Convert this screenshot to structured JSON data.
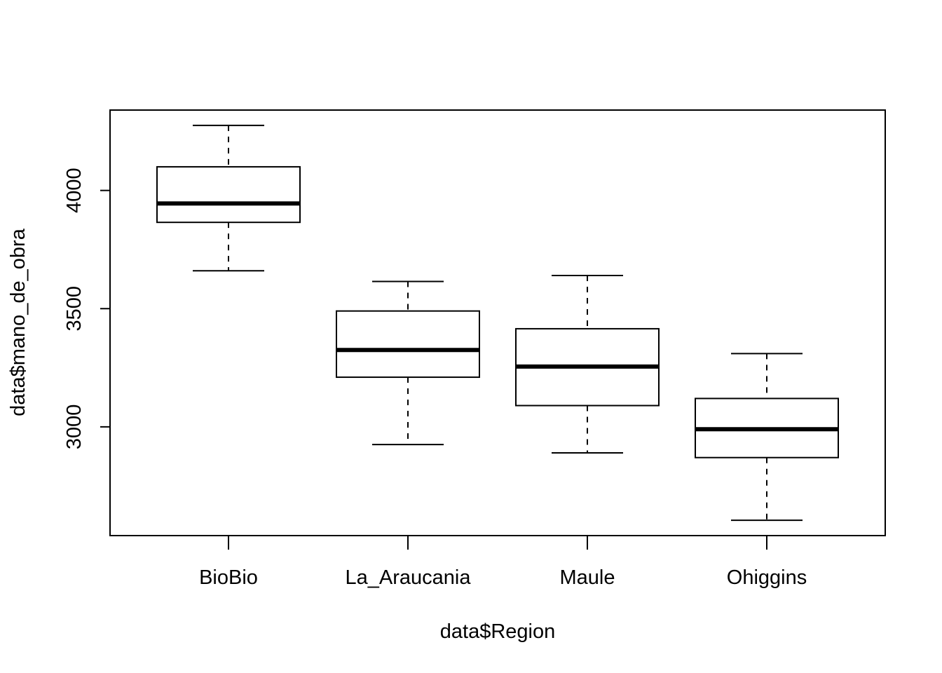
{
  "chart_data": {
    "type": "boxplot",
    "title": "",
    "xlabel": "data$Region",
    "ylabel": "data$mano_de_obra",
    "categories": [
      "BioBio",
      "La_Araucania",
      "Maule",
      "Ohiggins"
    ],
    "boxes": [
      {
        "category": "BioBio",
        "whisker_low": 3660,
        "q1": 3865,
        "median": 3945,
        "q3": 4100,
        "whisker_high": 4275
      },
      {
        "category": "La_Araucania",
        "whisker_low": 2925,
        "q1": 3210,
        "median": 3325,
        "q3": 3490,
        "whisker_high": 3615
      },
      {
        "category": "Maule",
        "whisker_low": 2890,
        "q1": 3090,
        "median": 3255,
        "q3": 3415,
        "whisker_high": 3640
      },
      {
        "category": "Ohiggins",
        "whisker_low": 2605,
        "q1": 2870,
        "median": 2990,
        "q3": 3120,
        "whisker_high": 3310
      }
    ],
    "y_ticks": [
      3000,
      3500,
      4000
    ],
    "y_tick_labels": [
      "3000",
      "3500",
      "4000"
    ],
    "ylim": [
      2540,
      4340
    ],
    "grid": false,
    "legend": "none"
  }
}
